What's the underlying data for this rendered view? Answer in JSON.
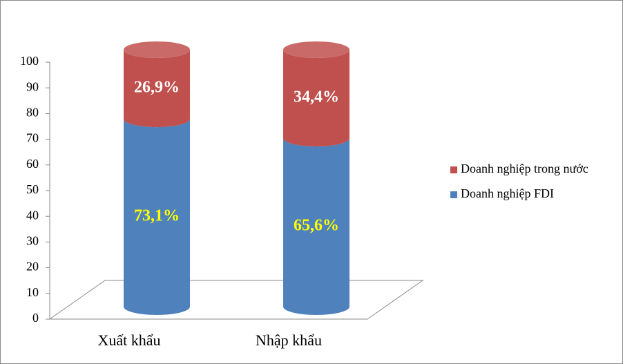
{
  "chart_data": {
    "type": "bar3d_stacked",
    "categories": [
      "Xuất khẩu",
      "Nhập khẩu"
    ],
    "series": [
      {
        "name": "Doanh nghiệp FDI",
        "color": "#4f81bd",
        "values": [
          73.1,
          65.6
        ],
        "value_labels": [
          "73,1%",
          "65,6%"
        ],
        "label_color": "#ffff00"
      },
      {
        "name": "Doanh nghiệp trong nước",
        "color": "#c0504d",
        "values": [
          26.9,
          34.4
        ],
        "value_labels": [
          "26,9%",
          "34,4%"
        ],
        "label_color": "#ffffff"
      }
    ],
    "ylim": [
      0,
      100
    ],
    "yticks": [
      0,
      10,
      20,
      30,
      40,
      50,
      60,
      70,
      80,
      90,
      100
    ],
    "legend": "right"
  }
}
